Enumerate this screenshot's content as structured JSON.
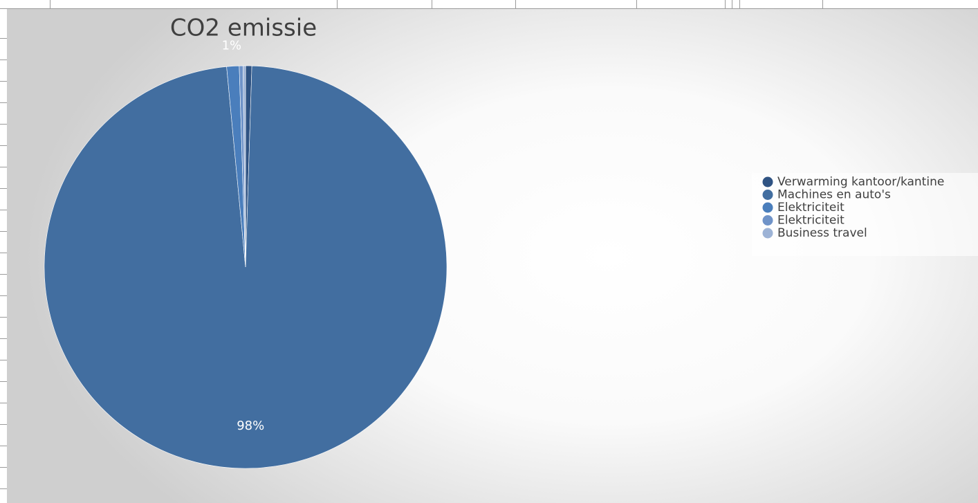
{
  "chart_data": {
    "type": "pie",
    "title": "CO2 emissie",
    "categories": [
      "Verwarming kantoor/kantine",
      "Machines en auto's",
      "Elektriciteit",
      "Elektriciteit",
      "Business travel"
    ],
    "values": [
      0.5,
      98,
      1,
      0.3,
      0.2
    ],
    "value_labels": [
      null,
      "98%",
      "1%",
      null,
      null
    ],
    "colors": [
      "#2f5383",
      "#426ea0",
      "#4a7ebc",
      "#6f93c8",
      "#9db3d6"
    ],
    "legend": "right"
  }
}
